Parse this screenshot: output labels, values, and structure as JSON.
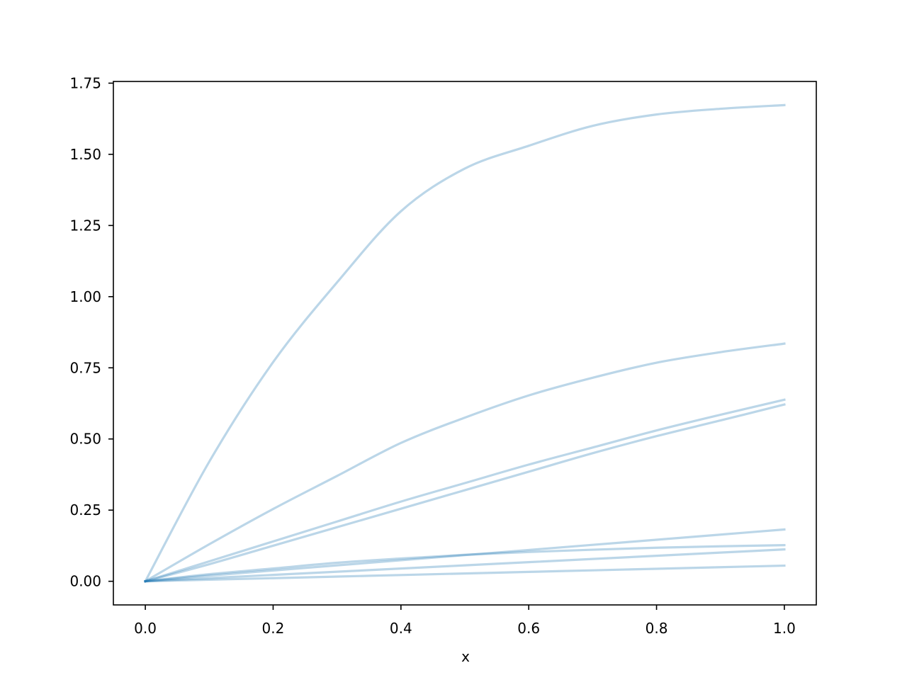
{
  "chart_data": {
    "type": "line",
    "title": "",
    "xlabel": "x",
    "ylabel": "",
    "xlim": [
      -0.05,
      1.05
    ],
    "ylim": [
      -0.083,
      1.756
    ],
    "xticks": [
      "0.0",
      "0.2",
      "0.4",
      "0.6",
      "0.8",
      "1.0"
    ],
    "yticks": [
      "0.00",
      "0.25",
      "0.50",
      "0.75",
      "1.00",
      "1.25",
      "1.50",
      "1.75"
    ],
    "grid": false,
    "legend": "none",
    "line_color": "#1f77b4",
    "line_alpha": 0.3,
    "x": [
      0,
      0.1,
      0.2,
      0.3,
      0.4,
      0.5,
      0.6,
      0.7,
      0.8,
      0.9,
      1.0
    ],
    "series": [
      {
        "values": [
          0,
          0.42,
          0.77,
          1.05,
          1.3,
          1.45,
          1.53,
          1.6,
          1.64,
          1.66,
          1.673
        ]
      },
      {
        "values": [
          0,
          0.13,
          0.254,
          0.37,
          0.486,
          0.575,
          0.653,
          0.715,
          0.768,
          0.805,
          0.835
        ]
      },
      {
        "values": [
          0,
          0.07,
          0.14,
          0.21,
          0.28,
          0.345,
          0.41,
          0.47,
          0.53,
          0.585,
          0.638
        ]
      },
      {
        "values": [
          0,
          0.06,
          0.125,
          0.19,
          0.255,
          0.32,
          0.385,
          0.45,
          0.51,
          0.565,
          0.621
        ]
      },
      {
        "values": [
          0,
          0.02,
          0.038,
          0.056,
          0.074,
          0.092,
          0.11,
          0.128,
          0.146,
          0.164,
          0.182
        ]
      },
      {
        "values": [
          0,
          0.025,
          0.045,
          0.065,
          0.08,
          0.093,
          0.103,
          0.111,
          0.118,
          0.123,
          0.127
        ]
      },
      {
        "values": [
          0,
          0.0112,
          0.0224,
          0.0336,
          0.0448,
          0.056,
          0.0672,
          0.0784,
          0.0896,
          0.1008,
          0.112
        ]
      },
      {
        "values": [
          0,
          0.0055,
          0.011,
          0.0165,
          0.022,
          0.0275,
          0.033,
          0.0385,
          0.044,
          0.0495,
          0.055
        ]
      }
    ]
  }
}
